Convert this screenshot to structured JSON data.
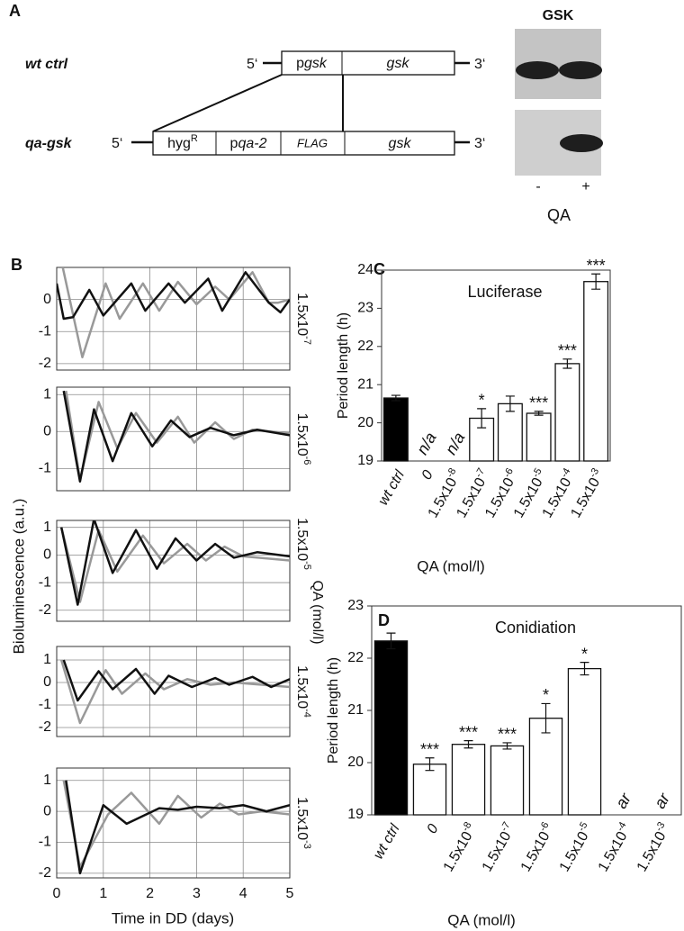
{
  "panel_a": {
    "label": "A",
    "blot_title": "GSK",
    "wt_row": {
      "name": "wt ctrl",
      "five": "5‘",
      "three": "3‘",
      "promoter": {
        "prefix": "p",
        "gene": "gsk"
      },
      "gene": "gsk"
    },
    "qa_row": {
      "name": "qa-gsk",
      "five": "5‘",
      "three": "3‘",
      "marker": {
        "text": "hyg",
        "sup": "R"
      },
      "promoter": {
        "prefix": "p",
        "gene": "qa-2"
      },
      "tag": "FLAG",
      "gene": "gsk"
    },
    "lanes": [
      "-",
      "+"
    ],
    "lane_label": "QA"
  },
  "panel_b": {
    "label": "B",
    "ylabel": "Bioluminescence (a.u.)",
    "xlabel": "Time in DD (days)",
    "side_label": "QA (mol/l)"
  },
  "chart_data": [
    {
      "type": "line",
      "annotation": "1.5x10-7",
      "xlim": [
        0,
        5
      ],
      "xticks": [
        0,
        1,
        2,
        3,
        4,
        5
      ],
      "ylim": [
        -2.2,
        1
      ],
      "yticks": [
        -2,
        -1,
        0
      ],
      "show_xtick_labels": false,
      "series": [
        {
          "color": "#999999",
          "x": [
            0.1,
            0.55,
            1.05,
            1.35,
            1.85,
            2.2,
            2.6,
            3.0,
            3.4,
            3.7,
            4.2,
            4.55,
            4.75,
            5.0
          ],
          "values": [
            1.2,
            -1.8,
            0.5,
            -0.6,
            0.5,
            -0.35,
            0.55,
            -0.15,
            0.4,
            0.0,
            0.85,
            -0.1,
            -0.1,
            0.0
          ]
        },
        {
          "color": "#111111",
          "x": [
            0,
            0.15,
            0.35,
            0.7,
            1.0,
            1.6,
            1.9,
            2.4,
            2.75,
            3.25,
            3.55,
            4.05,
            4.55,
            4.8,
            5.0
          ],
          "values": [
            0.5,
            -0.6,
            -0.55,
            0.3,
            -0.5,
            0.5,
            -0.35,
            0.5,
            -0.1,
            0.65,
            -0.35,
            0.85,
            -0.1,
            -0.4,
            0.0
          ]
        }
      ]
    },
    {
      "type": "line",
      "annotation": "1.5x10-6",
      "xlim": [
        0,
        5
      ],
      "xticks": [
        0,
        1,
        2,
        3,
        4,
        5
      ],
      "ylim": [
        -1.6,
        1.2
      ],
      "yticks": [
        -1,
        0,
        1
      ],
      "show_xtick_labels": false,
      "series": [
        {
          "color": "#999999",
          "x": [
            0.2,
            0.5,
            0.9,
            1.3,
            1.7,
            2.15,
            2.6,
            2.95,
            3.4,
            3.8,
            4.2,
            5.0
          ],
          "values": [
            1.1,
            -1.3,
            0.8,
            -0.45,
            0.5,
            -0.3,
            0.4,
            -0.3,
            0.25,
            -0.2,
            0.05,
            -0.05
          ]
        },
        {
          "color": "#111111",
          "x": [
            0.15,
            0.5,
            0.8,
            1.2,
            1.6,
            2.05,
            2.45,
            2.85,
            3.3,
            3.8,
            4.3,
            5.0
          ],
          "values": [
            1.1,
            -1.35,
            0.6,
            -0.8,
            0.5,
            -0.4,
            0.3,
            -0.15,
            0.1,
            -0.1,
            0.05,
            -0.1
          ]
        }
      ]
    },
    {
      "type": "line",
      "annotation": "1.5x10-5",
      "xlim": [
        0,
        5
      ],
      "xticks": [
        0,
        1,
        2,
        3,
        4,
        5
      ],
      "ylim": [
        -2.4,
        1.25
      ],
      "yticks": [
        -2,
        -1,
        0,
        1
      ],
      "show_xtick_labels": false,
      "series": [
        {
          "color": "#999999",
          "x": [
            0.1,
            0.5,
            0.9,
            1.3,
            1.85,
            2.3,
            2.8,
            3.2,
            3.6,
            4.0,
            5.0
          ],
          "values": [
            1.0,
            -1.7,
            0.9,
            -0.6,
            0.7,
            -0.3,
            0.4,
            -0.2,
            0.3,
            -0.05,
            -0.2
          ]
        },
        {
          "color": "#111111",
          "x": [
            0.1,
            0.45,
            0.8,
            1.2,
            1.7,
            2.15,
            2.55,
            3.0,
            3.4,
            3.8,
            4.3,
            5.0
          ],
          "values": [
            1.0,
            -1.8,
            1.3,
            -0.65,
            0.9,
            -0.5,
            0.6,
            -0.2,
            0.4,
            -0.1,
            0.1,
            -0.05
          ]
        }
      ]
    },
    {
      "type": "line",
      "annotation": "1.5x10-4",
      "xlim": [
        0,
        5
      ],
      "xticks": [
        0,
        1,
        2,
        3,
        4,
        5
      ],
      "ylim": [
        -2.4,
        1.6
      ],
      "yticks": [
        -2,
        -1,
        0,
        1
      ],
      "show_xtick_labels": false,
      "series": [
        {
          "color": "#999999",
          "x": [
            0.1,
            0.5,
            1.05,
            1.4,
            1.9,
            2.3,
            2.8,
            3.3,
            3.8,
            5.0
          ],
          "values": [
            1.0,
            -1.8,
            0.55,
            -0.5,
            0.4,
            -0.3,
            0.15,
            -0.1,
            0.0,
            -0.2
          ]
        },
        {
          "color": "#111111",
          "x": [
            0.15,
            0.45,
            0.9,
            1.2,
            1.7,
            2.1,
            2.4,
            2.9,
            3.4,
            3.7,
            4.2,
            4.6,
            5.0
          ],
          "values": [
            1.0,
            -0.8,
            0.5,
            -0.3,
            0.6,
            -0.5,
            0.3,
            -0.2,
            0.2,
            -0.1,
            0.25,
            -0.2,
            0.15
          ]
        }
      ]
    },
    {
      "type": "line",
      "annotation": "1.5x10-3",
      "xlim": [
        0,
        5
      ],
      "xticks": [
        0,
        1,
        2,
        3,
        4,
        5
      ],
      "ylim": [
        -2.15,
        1.4
      ],
      "yticks": [
        -2,
        -1,
        0,
        1
      ],
      "show_xtick_labels": true,
      "series": [
        {
          "color": "#999999",
          "x": [
            0.15,
            0.5,
            1.1,
            1.6,
            2.2,
            2.6,
            3.1,
            3.5,
            3.9,
            4.4,
            5.0
          ],
          "values": [
            1.0,
            -1.8,
            -0.1,
            0.6,
            -0.4,
            0.5,
            -0.2,
            0.25,
            -0.1,
            0.0,
            -0.1
          ]
        },
        {
          "color": "#111111",
          "x": [
            0.2,
            0.5,
            1.0,
            1.5,
            2.2,
            2.6,
            3.0,
            3.5,
            4.0,
            4.5,
            5.0
          ],
          "values": [
            1.0,
            -2.0,
            0.2,
            -0.4,
            0.1,
            0.05,
            0.15,
            0.1,
            0.2,
            0.0,
            0.2
          ]
        }
      ]
    },
    {
      "type": "bar",
      "panel_label": "C",
      "title": "Luciferase",
      "ylabel": "Period length (h)",
      "xlabel": "QA (mol/l)",
      "categories": [
        "wt ctrl",
        "0",
        "1.5x10-8",
        "1.5x10-7",
        "1.5x10-6",
        "1.5x10-5",
        "1.5x10-4",
        "1.5x10-3"
      ],
      "values": [
        20.65,
        null,
        null,
        20.12,
        20.5,
        20.25,
        21.55,
        23.7
      ],
      "errors": [
        0.07,
        null,
        null,
        0.25,
        0.2,
        0.05,
        0.12,
        0.2
      ],
      "annotations": [
        null,
        "n/a",
        "n/a",
        "*",
        null,
        "***",
        "***",
        "***"
      ],
      "colors": [
        "#000000",
        "#ffffff",
        "#ffffff",
        "#ffffff",
        "#ffffff",
        "#ffffff",
        "#ffffff",
        "#ffffff"
      ],
      "ylim": [
        19,
        24
      ],
      "yticks": [
        19,
        20,
        21,
        22,
        23,
        24
      ]
    },
    {
      "type": "bar",
      "panel_label": "D",
      "title": "Conidiation",
      "ylabel": "Period length (h)",
      "xlabel": "QA (mol/l)",
      "categories": [
        "wt ctrl",
        "0",
        "1.5x10-8",
        "1.5x10-7",
        "1.5x10-6",
        "1.5x10-5",
        "1.5x10-4",
        "1.5x10-3"
      ],
      "values": [
        22.33,
        19.97,
        20.35,
        20.32,
        20.85,
        21.8,
        null,
        null
      ],
      "errors": [
        0.15,
        0.12,
        0.07,
        0.06,
        0.28,
        0.12,
        null,
        null
      ],
      "annotations": [
        null,
        "***",
        "***",
        "***",
        "*",
        "*",
        "ar",
        "ar"
      ],
      "colors": [
        "#000000",
        "#ffffff",
        "#ffffff",
        "#ffffff",
        "#ffffff",
        "#ffffff",
        "#ffffff",
        "#ffffff"
      ],
      "ylim": [
        19,
        23
      ],
      "yticks": [
        19,
        20,
        21,
        22,
        23
      ]
    }
  ]
}
